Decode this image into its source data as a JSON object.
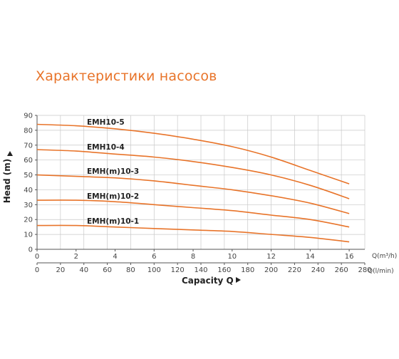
{
  "page": {
    "title": "Характеристики насосов"
  },
  "chart_data": {
    "type": "line",
    "title": "Характеристики насосов",
    "ylabel": "Head (m)",
    "xlabel": "Capacity Q",
    "x_unit": "Q(m³/h)",
    "x2_unit": "Q(l/min)",
    "ylim": [
      0,
      90
    ],
    "xlim": [
      0,
      17
    ],
    "x2lim": [
      0,
      280
    ],
    "yticks": [
      0,
      10,
      20,
      30,
      40,
      50,
      60,
      70,
      80,
      90
    ],
    "xticks": [
      0,
      2,
      4,
      6,
      8,
      10,
      12,
      14,
      16
    ],
    "x2ticks": [
      0,
      20,
      40,
      60,
      80,
      100,
      120,
      140,
      160,
      180,
      200,
      220,
      240,
      260,
      280
    ],
    "grid": true,
    "line_color": "#e8742a",
    "series": [
      {
        "name": "EMH10-5",
        "x": [
          0,
          2,
          4,
          6,
          8,
          10,
          12,
          14,
          16
        ],
        "values": [
          84,
          83,
          81,
          78,
          74,
          69,
          62,
          53,
          44
        ]
      },
      {
        "name": "EMH10-4",
        "x": [
          0,
          2,
          4,
          6,
          8,
          10,
          12,
          14,
          16
        ],
        "values": [
          67,
          66,
          64,
          62,
          59,
          55,
          50,
          43,
          34
        ]
      },
      {
        "name": "EMH(m)10-3",
        "x": [
          0,
          2,
          4,
          6,
          8,
          10,
          12,
          14,
          16
        ],
        "values": [
          50,
          49,
          48,
          46,
          43,
          40,
          36,
          31,
          24
        ]
      },
      {
        "name": "EMH(m)10-2",
        "x": [
          0,
          2,
          4,
          6,
          8,
          10,
          12,
          14,
          16
        ],
        "values": [
          33,
          33,
          32,
          30,
          28,
          26,
          23,
          20,
          15
        ]
      },
      {
        "name": "EMH(m)10-1",
        "x": [
          0,
          2,
          4,
          6,
          8,
          10,
          12,
          14,
          16
        ],
        "values": [
          16,
          16,
          15,
          14,
          13,
          12,
          10,
          8,
          5
        ]
      }
    ]
  }
}
